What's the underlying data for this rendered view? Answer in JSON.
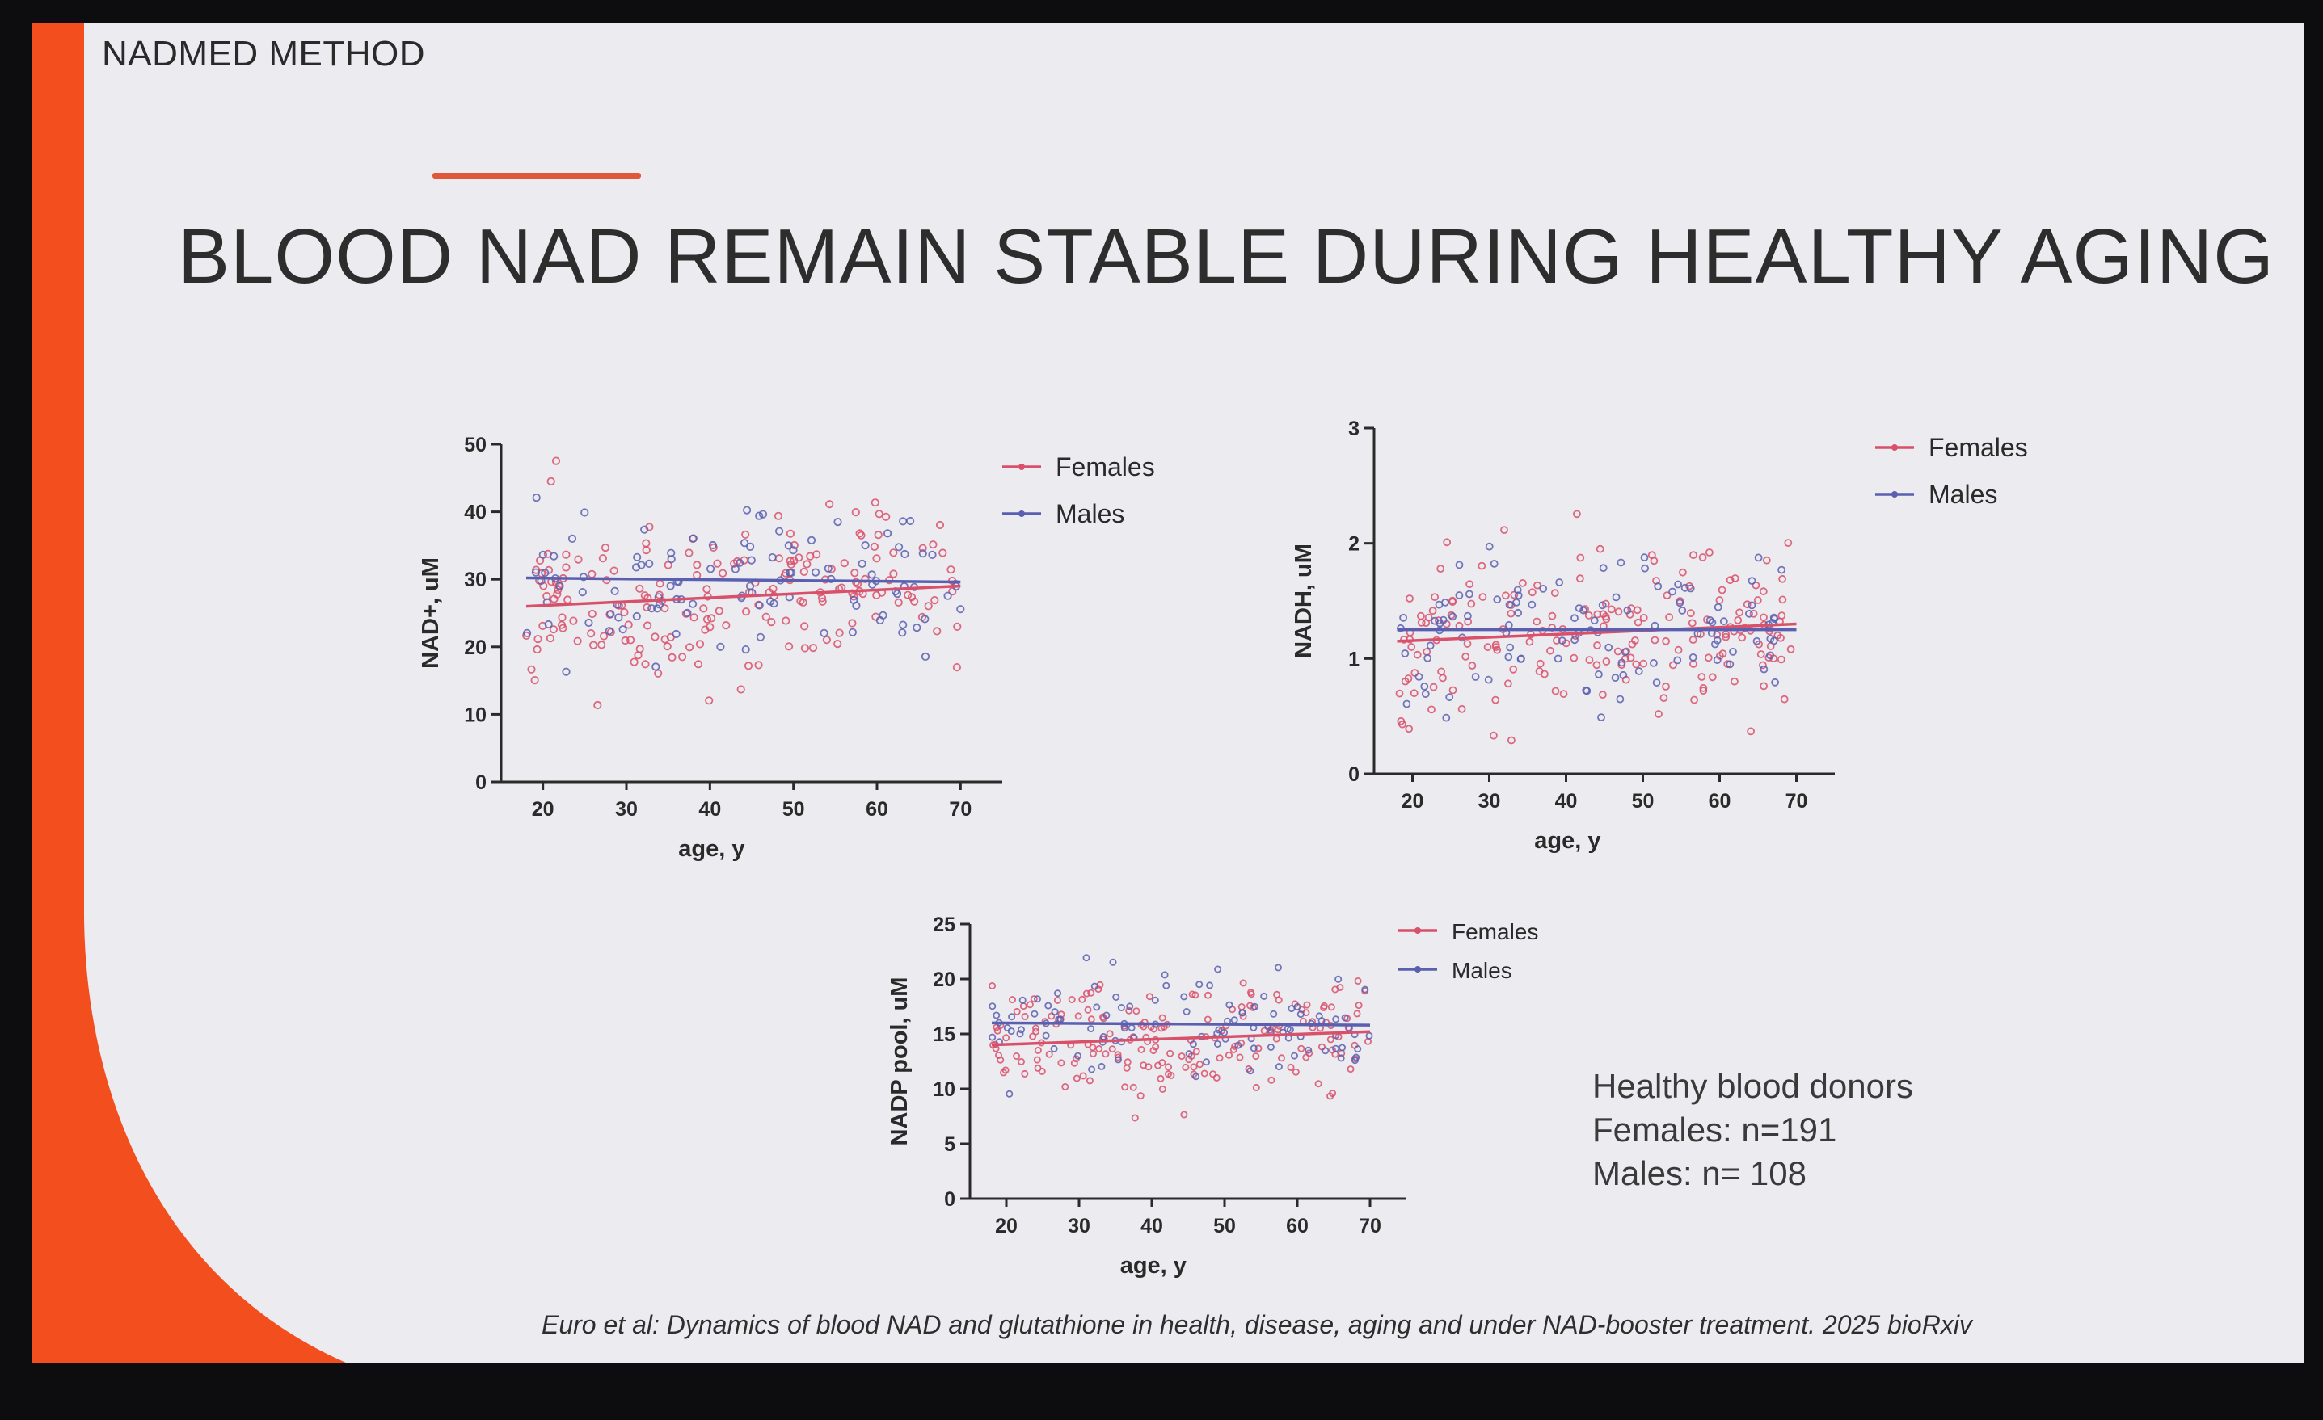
{
  "slide": {
    "brand": "NADMED METHOD",
    "title": "BLOOD NAD REMAIN STABLE DURING HEALTHY AGING",
    "donors": {
      "heading": "Healthy blood donors",
      "females": "Females: n=191",
      "males": "Males: n= 108"
    },
    "citation": "Euro et al: Dynamics of blood NAD and glutathione in health, disease, aging and under NAD-booster treatment. 2025 bioRxiv"
  },
  "colors": {
    "females": "#d9506a",
    "males": "#5b5fb0",
    "accent": "#f24e1e"
  },
  "chart_data": [
    {
      "type": "scatter",
      "xlabel": "age, y",
      "ylabel": "NAD+, uM",
      "xticks": [
        20,
        30,
        40,
        50,
        60,
        70
      ],
      "yticks": [
        0,
        10,
        20,
        30,
        40,
        50
      ],
      "xlim": [
        15,
        75
      ],
      "ylim": [
        0,
        50
      ],
      "legend": [
        "Females",
        "Males"
      ],
      "series": [
        {
          "name": "Females",
          "trend": [
            [
              18,
              26.0
            ],
            [
              70,
              29.0
            ]
          ],
          "approx_center": 27.5,
          "approx_spread": 6
        },
        {
          "name": "Males",
          "trend": [
            [
              18,
              30.2
            ],
            [
              70,
              29.6
            ]
          ],
          "approx_center": 30,
          "approx_spread": 6
        }
      ]
    },
    {
      "type": "scatter",
      "xlabel": "age, y",
      "ylabel": "NADH, uM",
      "xticks": [
        20,
        30,
        40,
        50,
        60,
        70
      ],
      "yticks": [
        0,
        1,
        2,
        3
      ],
      "xlim": [
        15,
        75
      ],
      "ylim": [
        0,
        3
      ],
      "legend": [
        "Females",
        "Males"
      ],
      "series": [
        {
          "name": "Females",
          "trend": [
            [
              18,
              1.15
            ],
            [
              70,
              1.3
            ]
          ],
          "approx_center": 1.2,
          "approx_spread": 0.35
        },
        {
          "name": "Males",
          "trend": [
            [
              18,
              1.25
            ],
            [
              70,
              1.25
            ]
          ],
          "approx_center": 1.25,
          "approx_spread": 0.35
        }
      ]
    },
    {
      "type": "scatter",
      "xlabel": "age, y",
      "ylabel": "NADP pool, uM",
      "xticks": [
        20,
        30,
        40,
        50,
        60,
        70
      ],
      "yticks": [
        0,
        5,
        10,
        15,
        20,
        25
      ],
      "xlim": [
        15,
        75
      ],
      "ylim": [
        0,
        25
      ],
      "legend": [
        "Females",
        "Males"
      ],
      "series": [
        {
          "name": "Females",
          "trend": [
            [
              18,
              14.0
            ],
            [
              70,
              15.2
            ]
          ],
          "approx_center": 14.5,
          "approx_spread": 2.6
        },
        {
          "name": "Males",
          "trend": [
            [
              18,
              16.0
            ],
            [
              70,
              15.8
            ]
          ],
          "approx_center": 15.8,
          "approx_spread": 2.4
        }
      ]
    }
  ]
}
